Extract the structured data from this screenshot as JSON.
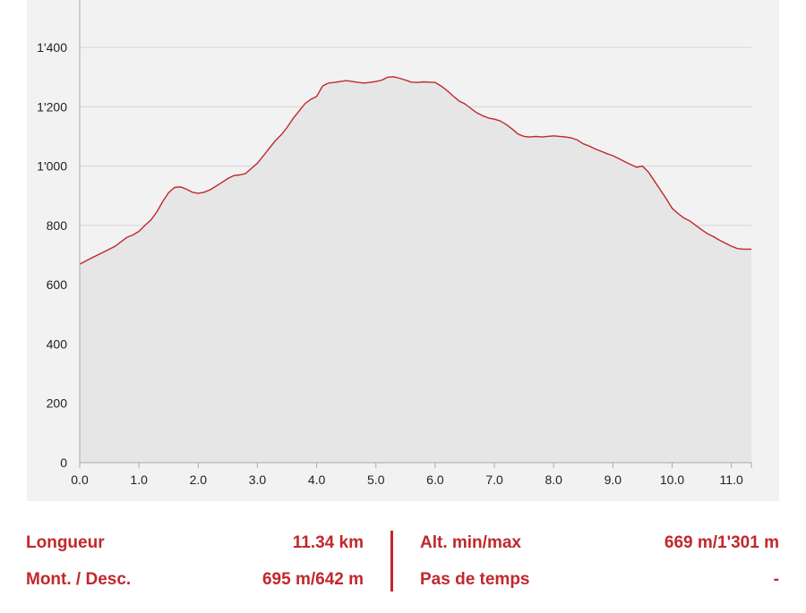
{
  "chart_data": {
    "type": "area",
    "title": "",
    "xlabel": "",
    "ylabel": "",
    "xlim": [
      0,
      11.34
    ],
    "ylim": [
      0,
      1500
    ],
    "x_ticks": [
      "0.0",
      "1.0",
      "2.0",
      "3.0",
      "4.0",
      "5.0",
      "6.0",
      "7.0",
      "8.0",
      "9.0",
      "10.0",
      "11.0"
    ],
    "y_ticks": [
      "0",
      "200",
      "400",
      "600",
      "800",
      "1'000",
      "1'200",
      "1'400"
    ],
    "grid": "horizontal",
    "colors": {
      "line": "#c0282d",
      "fill": "#e6e6e6",
      "background": "#f2f2f2",
      "grid": "#d4d4d4",
      "axis": "#aaaaaa"
    },
    "series": [
      {
        "x": [
          0.0,
          0.2,
          0.4,
          0.6,
          0.8,
          0.9,
          1.0,
          1.1,
          1.2,
          1.3,
          1.4,
          1.5,
          1.6,
          1.7,
          1.8,
          1.9,
          2.0,
          2.1,
          2.2,
          2.3,
          2.4,
          2.5,
          2.6,
          2.7,
          2.8,
          3.0,
          3.1,
          3.2,
          3.3,
          3.4,
          3.5,
          3.6,
          3.7,
          3.8,
          3.9,
          4.0,
          4.1,
          4.2,
          4.3,
          4.4,
          4.5,
          4.6,
          4.7,
          4.8,
          4.9,
          5.0,
          5.1,
          5.2,
          5.3,
          5.4,
          5.5,
          5.6,
          5.7,
          5.8,
          5.9,
          6.0,
          6.1,
          6.2,
          6.3,
          6.4,
          6.5,
          6.6,
          6.7,
          6.8,
          6.9,
          7.0,
          7.1,
          7.2,
          7.3,
          7.4,
          7.5,
          7.6,
          7.7,
          7.8,
          7.9,
          8.0,
          8.1,
          8.2,
          8.3,
          8.4,
          8.5,
          8.6,
          8.7,
          8.8,
          8.9,
          9.0,
          9.1,
          9.2,
          9.3,
          9.4,
          9.5,
          9.6,
          9.7,
          9.8,
          9.9,
          10.0,
          10.1,
          10.2,
          10.3,
          10.4,
          10.5,
          10.6,
          10.7,
          10.8,
          10.9,
          11.0,
          11.1,
          11.2,
          11.34
        ],
        "y": [
          669,
          690,
          710,
          730,
          760,
          768,
          780,
          800,
          818,
          845,
          880,
          910,
          928,
          930,
          922,
          912,
          908,
          912,
          920,
          932,
          945,
          958,
          968,
          970,
          975,
          1010,
          1035,
          1060,
          1085,
          1105,
          1130,
          1160,
          1185,
          1210,
          1225,
          1235,
          1270,
          1280,
          1282,
          1285,
          1288,
          1285,
          1282,
          1280,
          1282,
          1285,
          1290,
          1300,
          1301,
          1296,
          1290,
          1283,
          1282,
          1284,
          1283,
          1282,
          1270,
          1255,
          1237,
          1220,
          1210,
          1195,
          1180,
          1170,
          1162,
          1158,
          1152,
          1140,
          1125,
          1108,
          1100,
          1098,
          1100,
          1098,
          1100,
          1102,
          1100,
          1098,
          1095,
          1088,
          1075,
          1068,
          1058,
          1050,
          1042,
          1035,
          1025,
          1015,
          1005,
          996,
          1000,
          980,
          950,
          920,
          890,
          858,
          840,
          825,
          815,
          800,
          785,
          772,
          762,
          750,
          740,
          730,
          722,
          720,
          720
        ]
      }
    ]
  },
  "stats": {
    "length_label": "Longueur",
    "length_value": "11.34 km",
    "updown_label": "Mont. / Desc.",
    "updown_value": "695 m/642 m",
    "altitude_label": "Alt. min/max",
    "altitude_value": "669 m/1'301 m",
    "timestep_label": "Pas de temps",
    "timestep_value": "-"
  }
}
